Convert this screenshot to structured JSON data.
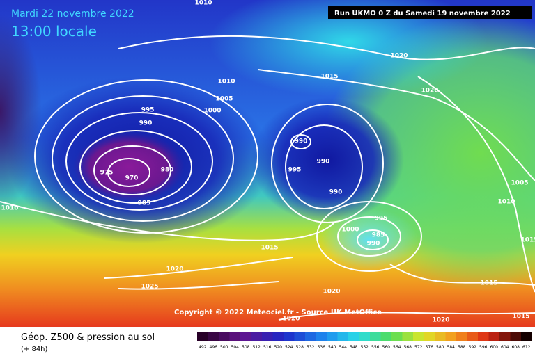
{
  "header": {
    "date": "Mardi 22 novembre 2022",
    "time": "13:00 locale",
    "run": "Run UKMO 0 Z du Samedi 19 novembre 2022"
  },
  "map": {
    "isobar_labels": [
      "1010",
      "1020",
      "1015",
      "1010",
      "1005",
      "1000",
      "995",
      "990",
      "990",
      "990",
      "995",
      "975",
      "980",
      "970",
      "985",
      "990",
      "1020",
      "1005",
      "1010",
      "1010",
      "995",
      "1000",
      "985",
      "990",
      "1015",
      "1020",
      "1025",
      "1020",
      "1015",
      "1015",
      "1020",
      "1020",
      "1015"
    ],
    "copyright": "Copyright © 2022 Meteociel.fr - Source UK MetOffice"
  },
  "legend": {
    "title": "Géop. Z500 & pression au sol",
    "lead": "(+ 84h)",
    "scale": [
      492,
      496,
      500,
      504,
      508,
      512,
      516,
      520,
      524,
      528,
      532,
      536,
      540,
      544,
      548,
      552,
      556,
      560,
      564,
      568,
      572,
      576,
      580,
      584,
      588,
      592,
      596,
      600,
      604,
      608,
      612
    ]
  }
}
